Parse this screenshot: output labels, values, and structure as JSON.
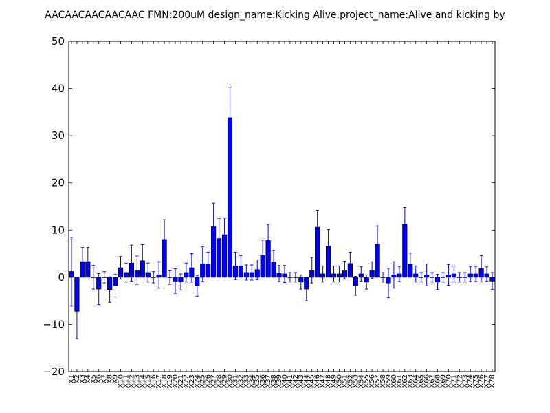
{
  "chart_data": {
    "type": "bar",
    "title": "AACAACAACAACAAC  FMN:200uM  design_name:Kicking Alive,project_name:Alive and kicking by",
    "xlabel": "",
    "ylabel": "",
    "ylim": [
      -20,
      50
    ],
    "yticks": [
      -20,
      -10,
      0,
      10,
      20,
      30,
      40,
      50
    ],
    "grid": false,
    "bar_color": "#0000ff",
    "error_color": "#0000ff",
    "categories": [
      "X1",
      "X2",
      "X3",
      "X4",
      "X5",
      "X6",
      "X7",
      "X8",
      "X9",
      "X10",
      "X11",
      "X12",
      "X13",
      "X14",
      "X15",
      "X16",
      "X17",
      "X18",
      "X19",
      "X20",
      "X21",
      "X22",
      "X23",
      "X24",
      "X25",
      "X26",
      "X27",
      "X28",
      "X29",
      "X30",
      "X31",
      "X32",
      "X33",
      "X34",
      "X35",
      "X36",
      "X37",
      "X38",
      "X39",
      "X40",
      "X41",
      "X42",
      "X43",
      "X44",
      "X45",
      "X46",
      "X47",
      "X48",
      "X49",
      "X50",
      "X51",
      "X52",
      "X53",
      "X54",
      "X55",
      "X56",
      "X57",
      "X58",
      "X59",
      "X60",
      "X61",
      "X62",
      "X63",
      "X64",
      "X65",
      "X66",
      "X67",
      "X68",
      "X69",
      "X70",
      "X71",
      "X72",
      "X73",
      "X74",
      "X75",
      "X76",
      "X77",
      "X78"
    ],
    "values": [
      1.2,
      -7.2,
      3.3,
      3.3,
      0.0,
      -2.5,
      0.0,
      -2.6,
      -1.8,
      2.0,
      1.0,
      3.0,
      1.5,
      3.5,
      1.0,
      0.0,
      0.5,
      8.0,
      0.0,
      -0.8,
      -1.0,
      1.0,
      2.0,
      -1.8,
      2.8,
      2.7,
      10.7,
      8.2,
      9.0,
      33.8,
      2.4,
      2.4,
      1.0,
      1.0,
      1.6,
      4.6,
      7.8,
      3.2,
      0.8,
      0.7,
      0.0,
      0.0,
      -1.0,
      -2.5,
      1.5,
      10.6,
      0.7,
      6.6,
      0.7,
      0.7,
      1.5,
      2.9,
      -1.8,
      0.7,
      -1.0,
      1.5,
      7.0,
      0.0,
      -1.2,
      0.5,
      0.7,
      11.2,
      2.7,
      0.7,
      0.0,
      0.5,
      0.0,
      -1.0,
      0.0,
      0.5,
      0.7,
      0.0,
      0.0,
      0.7,
      0.7,
      1.8,
      0.7,
      -0.8
    ],
    "errors": [
      7.3,
      5.8,
      3.0,
      3.0,
      2.5,
      3.3,
      1.2,
      2.7,
      2.4,
      2.4,
      2.0,
      3.8,
      3.0,
      3.4,
      2.0,
      1.2,
      2.8,
      4.2,
      1.5,
      2.6,
      1.7,
      2.0,
      3.0,
      2.2,
      3.7,
      2.6,
      5.0,
      4.3,
      3.6,
      6.5,
      2.9,
      2.2,
      1.6,
      1.6,
      2.1,
      3.3,
      3.4,
      2.5,
      1.7,
      1.8,
      1.0,
      1.0,
      1.5,
      2.5,
      2.7,
      3.6,
      1.7,
      3.5,
      1.7,
      1.7,
      1.9,
      2.4,
      2.0,
      1.5,
      1.5,
      1.8,
      3.9,
      1.0,
      3.1,
      2.8,
      1.6,
      3.6,
      2.4,
      1.7,
      1.0,
      2.3,
      1.0,
      1.6,
      1.0,
      2.2,
      1.7,
      1.0,
      1.0,
      1.6,
      1.6,
      2.8,
      1.5,
      1.8
    ]
  }
}
